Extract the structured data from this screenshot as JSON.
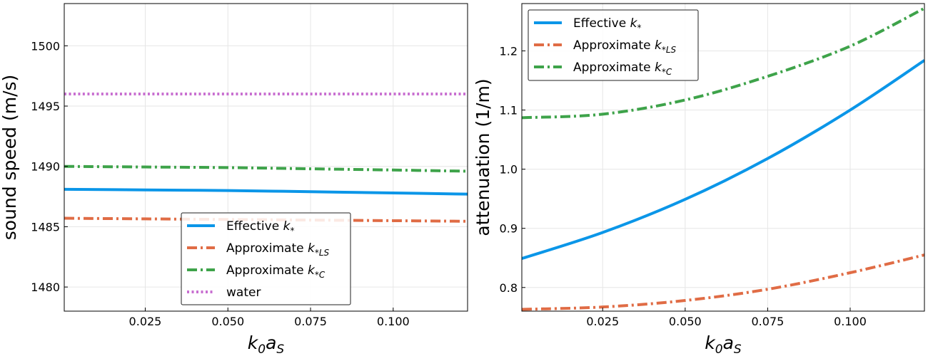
{
  "chart_data": [
    {
      "type": "line",
      "xlabel": "k0aS",
      "ylabel": "sound speed (m/s)",
      "xlim": [
        0.0005,
        0.1225
      ],
      "ylim": [
        1478,
        1503.5
      ],
      "xticks": [
        0.025,
        0.05,
        0.075,
        0.1
      ],
      "xtick_labels": [
        "0.025",
        "0.050",
        "0.075",
        "0.100"
      ],
      "yticks": [
        1480,
        1485,
        1490,
        1495,
        1500
      ],
      "ytick_labels": [
        "1480",
        "1485",
        "1490",
        "1495",
        "1500"
      ],
      "grid": true,
      "legend_position": "bottom-center",
      "series": [
        {
          "name": "Effective k*",
          "color": "#0b96e8",
          "dash": "solid",
          "x": [
            0.0005,
            0.025,
            0.05,
            0.075,
            0.1,
            0.1225
          ],
          "y": [
            1488.1,
            1488.05,
            1488.0,
            1487.9,
            1487.8,
            1487.7
          ]
        },
        {
          "name": "Approximate k*LS",
          "color": "#e06c45",
          "dash": "dashdot",
          "x": [
            0.0005,
            0.025,
            0.05,
            0.075,
            0.1,
            0.1225
          ],
          "y": [
            1485.7,
            1485.65,
            1485.6,
            1485.55,
            1485.5,
            1485.45
          ]
        },
        {
          "name": "Approximate k*C",
          "color": "#3ea34a",
          "dash": "dashdot",
          "x": [
            0.0005,
            0.025,
            0.05,
            0.075,
            0.1,
            0.1225
          ],
          "y": [
            1490.0,
            1489.95,
            1489.9,
            1489.8,
            1489.7,
            1489.6
          ]
        },
        {
          "name": "water",
          "color": "#c86fd0",
          "dash": "dotted",
          "x": [
            0.0005,
            0.1225
          ],
          "y": [
            1496.0,
            1496.0
          ]
        }
      ]
    },
    {
      "type": "line",
      "xlabel": "k0aS",
      "ylabel": "attenuation (1/m)",
      "xlim": [
        0.0005,
        0.1225
      ],
      "ylim": [
        0.76,
        1.28
      ],
      "xticks": [
        0.025,
        0.05,
        0.075,
        0.1
      ],
      "xtick_labels": [
        "0.025",
        "0.050",
        "0.075",
        "0.100"
      ],
      "yticks": [
        0.8,
        0.9,
        1.0,
        1.1,
        1.2
      ],
      "ytick_labels": [
        "0.8",
        "0.9",
        "1.0",
        "1.1",
        "1.2"
      ],
      "grid": true,
      "legend_position": "top-left",
      "series": [
        {
          "name": "Effective k*",
          "color": "#0b96e8",
          "dash": "solid",
          "x": [
            0.0005,
            0.025,
            0.05,
            0.075,
            0.1,
            0.1225
          ],
          "y": [
            0.849,
            0.893,
            0.949,
            1.018,
            1.1,
            1.184
          ]
        },
        {
          "name": "Approximate k*LS",
          "color": "#e06c45",
          "dash": "dashdot",
          "x": [
            0.0005,
            0.025,
            0.05,
            0.075,
            0.1,
            0.1225
          ],
          "y": [
            0.763,
            0.767,
            0.778,
            0.797,
            0.825,
            0.855
          ]
        },
        {
          "name": "Approximate k*C",
          "color": "#3ea34a",
          "dash": "dashdot",
          "x": [
            0.0005,
            0.025,
            0.05,
            0.075,
            0.1,
            0.1225
          ],
          "y": [
            1.087,
            1.093,
            1.117,
            1.157,
            1.208,
            1.272
          ]
        }
      ]
    }
  ]
}
